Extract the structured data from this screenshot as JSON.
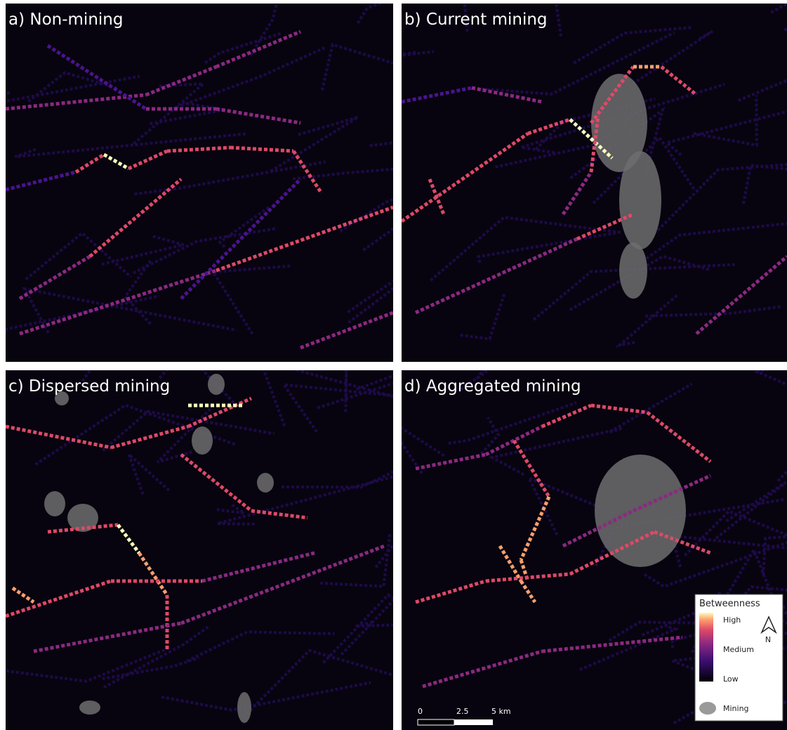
{
  "panels": [
    {
      "label": "a) Non-mining"
    },
    {
      "label": "b) Current mining"
    },
    {
      "label": "c) Dispersed mining"
    },
    {
      "label": "d) Aggregated mining"
    }
  ],
  "legend": {
    "title": "Betweenness",
    "high": "High",
    "medium": "Medium",
    "low": "Low",
    "north": "N",
    "mining": "Mining"
  },
  "scale_bar": {
    "labels": [
      "0",
      "2.5",
      "5 km"
    ]
  }
}
